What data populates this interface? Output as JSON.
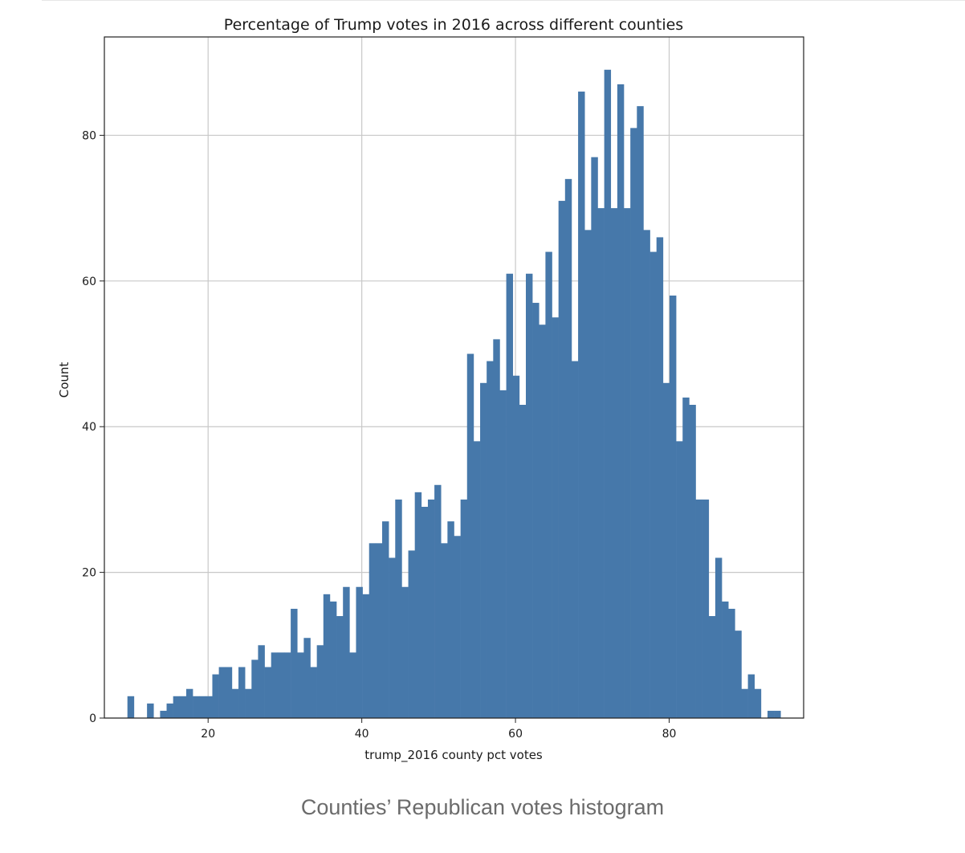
{
  "caption": "Counties’ Republican votes histogram",
  "chart_data": {
    "type": "bar",
    "subtype": "histogram",
    "title": "Percentage of Trump votes in 2016 across different counties",
    "xlabel": "trump_2016 county pct votes",
    "ylabel": "Count",
    "xlim": [
      6.5,
      97.5
    ],
    "ylim": [
      0,
      93.5
    ],
    "x_ticks": [
      20,
      40,
      60,
      80
    ],
    "y_ticks": [
      0,
      20,
      40,
      60,
      80
    ],
    "grid": true,
    "bar_color": "#4678aa",
    "bin_width": 0.85,
    "bin_start": 9.5,
    "values": [
      3,
      0,
      0,
      2,
      0,
      1,
      2,
      3,
      3,
      4,
      3,
      3,
      3,
      6,
      7,
      7,
      4,
      7,
      4,
      8,
      10,
      7,
      9,
      9,
      9,
      15,
      9,
      11,
      7,
      10,
      17,
      16,
      14,
      18,
      9,
      18,
      17,
      24,
      24,
      27,
      22,
      30,
      18,
      23,
      31,
      29,
      30,
      32,
      24,
      27,
      25,
      30,
      50,
      38,
      46,
      49,
      52,
      45,
      61,
      47,
      43,
      61,
      57,
      54,
      64,
      55,
      71,
      74,
      49,
      86,
      67,
      77,
      70,
      89,
      70,
      87,
      70,
      81,
      84,
      67,
      64,
      66,
      46,
      58,
      38,
      44,
      43,
      30,
      30,
      14,
      22,
      16,
      15,
      12,
      4,
      6,
      4,
      0,
      1,
      1
    ]
  }
}
